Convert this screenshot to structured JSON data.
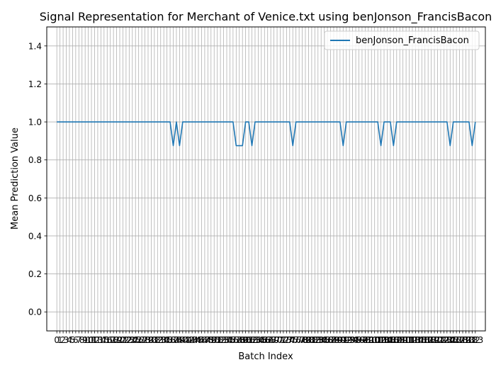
{
  "chart_data": {
    "type": "line",
    "title": "Signal Representation for Merchant of Venice.txt using benJonson_FrancisBacon",
    "xlabel": "Batch Index",
    "ylabel": "Mean Prediction Value",
    "xlim": [
      -3.2,
      136.2
    ],
    "ylim": [
      -0.1,
      1.5
    ],
    "yticks": [
      0.0,
      0.2,
      0.4,
      0.6,
      0.8,
      1.0,
      1.2,
      1.4
    ],
    "ytick_labels": [
      "0.0",
      "0.2",
      "0.4",
      "0.6",
      "0.8",
      "1.0",
      "1.2",
      "1.4"
    ],
    "grid": true,
    "legend": "top-right",
    "series": [
      {
        "name": "benJonson_FrancisBacon",
        "color": "#1f77b4",
        "x": [
          0,
          1,
          2,
          3,
          4,
          5,
          6,
          7,
          8,
          9,
          10,
          11,
          12,
          13,
          14,
          15,
          16,
          17,
          18,
          19,
          20,
          21,
          22,
          23,
          24,
          25,
          26,
          27,
          28,
          29,
          30,
          31,
          32,
          33,
          34,
          35,
          36,
          37,
          38,
          39,
          40,
          41,
          42,
          43,
          44,
          45,
          46,
          47,
          48,
          49,
          50,
          51,
          52,
          53,
          54,
          55,
          56,
          57,
          58,
          59,
          60,
          61,
          62,
          63,
          64,
          65,
          66,
          67,
          68,
          69,
          70,
          71,
          72,
          73,
          74,
          75,
          76,
          77,
          78,
          79,
          80,
          81,
          82,
          83,
          84,
          85,
          86,
          87,
          88,
          89,
          90,
          91,
          92,
          93,
          94,
          95,
          96,
          97,
          98,
          99,
          100,
          101,
          102,
          103,
          104,
          105,
          106,
          107,
          108,
          109,
          110,
          111,
          112,
          113,
          114,
          115,
          116,
          117,
          118,
          119,
          120,
          121,
          122,
          123,
          124,
          125,
          126,
          127,
          128,
          129,
          130,
          131,
          132,
          133
        ],
        "values": [
          1,
          1,
          1,
          1,
          1,
          1,
          1,
          1,
          1,
          1,
          1,
          1,
          1,
          1,
          1,
          1,
          1,
          1,
          1,
          1,
          1,
          1,
          1,
          1,
          1,
          1,
          1,
          1,
          1,
          1,
          1,
          1,
          1,
          1,
          1,
          1,
          1,
          0.875,
          1,
          0.875,
          1,
          1,
          1,
          1,
          1,
          1,
          1,
          1,
          1,
          1,
          1,
          1,
          1,
          1,
          1,
          1,
          1,
          0.875,
          0.875,
          0.875,
          1,
          1,
          0.875,
          1,
          1,
          1,
          1,
          1,
          1,
          1,
          1,
          1,
          1,
          1,
          1,
          0.875,
          1,
          1,
          1,
          1,
          1,
          1,
          1,
          1,
          1,
          1,
          1,
          1,
          1,
          1,
          1,
          0.875,
          1,
          1,
          1,
          1,
          1,
          1,
          1,
          1,
          1,
          1,
          1,
          0.875,
          1,
          1,
          1,
          0.875,
          1,
          1,
          1,
          1,
          1,
          1,
          1,
          1,
          1,
          1,
          1,
          1,
          1,
          1,
          1,
          1,
          1,
          0.875,
          1,
          1,
          1,
          1,
          1,
          1,
          0.875,
          1
        ]
      }
    ]
  }
}
